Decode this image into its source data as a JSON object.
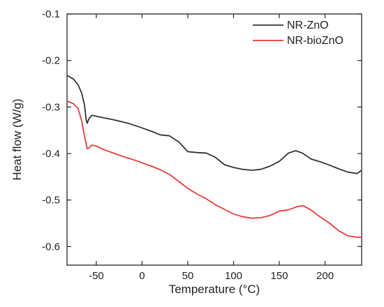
{
  "chart_data": {
    "type": "line",
    "title": "",
    "xlabel": "Temperature (°C)",
    "ylabel": "Heat flow (W/g)",
    "xlim": [
      -82,
      240
    ],
    "ylim": [
      -0.64,
      -0.1
    ],
    "x_ticks": [
      -50,
      0,
      50,
      100,
      150,
      200
    ],
    "y_ticks": [
      -0.1,
      -0.2,
      -0.3,
      -0.4,
      -0.5,
      -0.6
    ],
    "x_tick_labels": [
      "-50",
      "0",
      "50",
      "100",
      "150",
      "200"
    ],
    "y_tick_labels": [
      "-0.1",
      "-0.2",
      "-0.3",
      "-0.4",
      "-0.5",
      "-0.6"
    ],
    "grid": false,
    "legend_position": "top-right",
    "series": [
      {
        "name": "NR-ZnO",
        "color": "#333333",
        "points": [
          [
            -82,
            -0.232
          ],
          [
            -75,
            -0.24
          ],
          [
            -70,
            -0.252
          ],
          [
            -66,
            -0.27
          ],
          [
            -63,
            -0.295
          ],
          [
            -61,
            -0.328
          ],
          [
            -60,
            -0.335
          ],
          [
            -58,
            -0.325
          ],
          [
            -55,
            -0.318
          ],
          [
            -45,
            -0.322
          ],
          [
            -30,
            -0.328
          ],
          [
            -15,
            -0.335
          ],
          [
            0,
            -0.345
          ],
          [
            10,
            -0.352
          ],
          [
            20,
            -0.36
          ],
          [
            30,
            -0.362
          ],
          [
            40,
            -0.375
          ],
          [
            50,
            -0.396
          ],
          [
            60,
            -0.398
          ],
          [
            70,
            -0.399
          ],
          [
            80,
            -0.408
          ],
          [
            90,
            -0.424
          ],
          [
            100,
            -0.43
          ],
          [
            110,
            -0.434
          ],
          [
            120,
            -0.436
          ],
          [
            130,
            -0.434
          ],
          [
            140,
            -0.427
          ],
          [
            150,
            -0.417
          ],
          [
            160,
            -0.399
          ],
          [
            168,
            -0.394
          ],
          [
            175,
            -0.399
          ],
          [
            185,
            -0.412
          ],
          [
            195,
            -0.418
          ],
          [
            205,
            -0.425
          ],
          [
            215,
            -0.433
          ],
          [
            225,
            -0.44
          ],
          [
            235,
            -0.443
          ],
          [
            240,
            -0.436
          ]
        ]
      },
      {
        "name": "NR-bioZnO",
        "color": "#e83a3a",
        "points": [
          [
            -82,
            -0.287
          ],
          [
            -75,
            -0.293
          ],
          [
            -70,
            -0.303
          ],
          [
            -66,
            -0.33
          ],
          [
            -63,
            -0.362
          ],
          [
            -60,
            -0.39
          ],
          [
            -58,
            -0.388
          ],
          [
            -55,
            -0.382
          ],
          [
            -50,
            -0.384
          ],
          [
            -40,
            -0.393
          ],
          [
            -30,
            -0.4
          ],
          [
            -20,
            -0.407
          ],
          [
            -10,
            -0.413
          ],
          [
            0,
            -0.42
          ],
          [
            10,
            -0.427
          ],
          [
            20,
            -0.435
          ],
          [
            30,
            -0.445
          ],
          [
            40,
            -0.46
          ],
          [
            50,
            -0.475
          ],
          [
            60,
            -0.487
          ],
          [
            70,
            -0.497
          ],
          [
            80,
            -0.51
          ],
          [
            90,
            -0.52
          ],
          [
            100,
            -0.53
          ],
          [
            110,
            -0.536
          ],
          [
            120,
            -0.539
          ],
          [
            130,
            -0.538
          ],
          [
            140,
            -0.533
          ],
          [
            150,
            -0.524
          ],
          [
            160,
            -0.521
          ],
          [
            170,
            -0.514
          ],
          [
            176,
            -0.512
          ],
          [
            185,
            -0.522
          ],
          [
            195,
            -0.537
          ],
          [
            205,
            -0.55
          ],
          [
            215,
            -0.566
          ],
          [
            225,
            -0.577
          ],
          [
            235,
            -0.58
          ],
          [
            240,
            -0.58
          ]
        ]
      }
    ]
  }
}
